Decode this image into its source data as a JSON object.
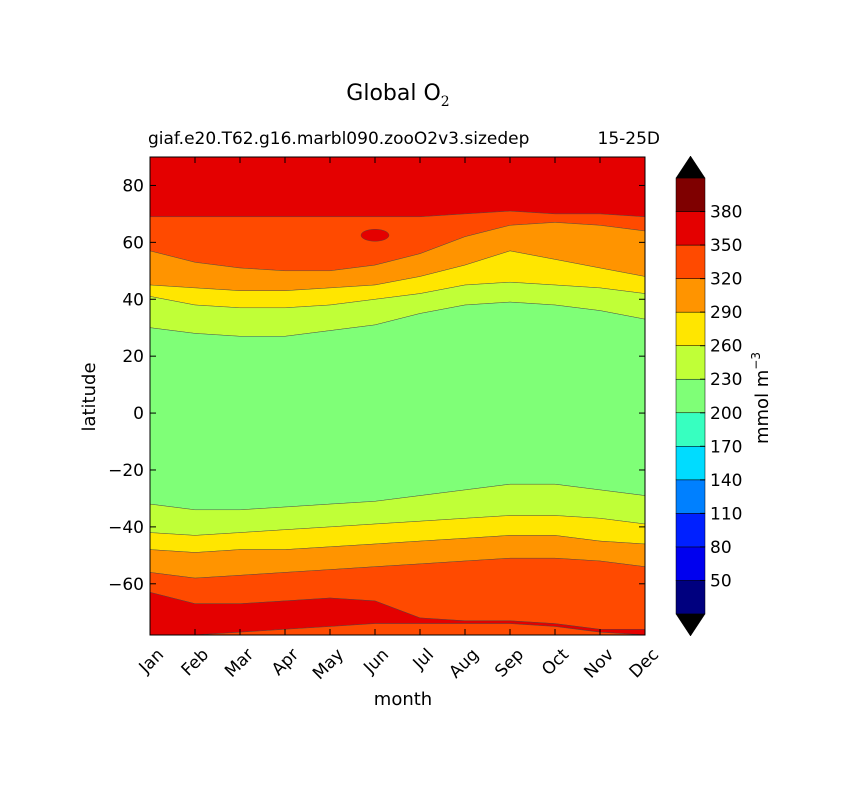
{
  "title_main": "Global O",
  "title_sub": "2",
  "experiment": "giaf.e20.T62.g16.marbl090.zooO2v3.sizedep",
  "depth_label": "15-25D",
  "colors": {
    "levels": [
      "#00007f",
      "#0000ef",
      "#0020ff",
      "#0080ff",
      "#00dcff",
      "#37ffc0",
      "#7fff77",
      "#c0ff37",
      "#ffe600",
      "#ff9400",
      "#ff4a00",
      "#e40000",
      "#7f0000"
    ],
    "extend_min": "#000000",
    "extend_max": "#000000"
  },
  "chart_data": {
    "type": "contourf",
    "title": "Global O₂",
    "subtitle_left": "giaf.e20.T62.g16.marbl090.zooO2v3.sizedep",
    "subtitle_right": "15-25D",
    "xlabel": "month",
    "ylabel": "latitude",
    "x_categories": [
      "Jan",
      "Feb",
      "Mar",
      "Apr",
      "May",
      "Jun",
      "Jul",
      "Aug",
      "Sep",
      "Oct",
      "Nov",
      "Dec"
    ],
    "xlim": [
      0,
      11
    ],
    "ylim": [
      -78,
      90
    ],
    "yticks": [
      80,
      60,
      40,
      20,
      0,
      -20,
      -40,
      -60
    ],
    "ytick_labels": [
      "80",
      "60",
      "40",
      "20",
      "0",
      "−20",
      "−40",
      "−60"
    ],
    "colorbar": {
      "label": "mmol m",
      "label_sup": "−3",
      "levels": [
        20,
        50,
        80,
        110,
        140,
        170,
        200,
        230,
        260,
        290,
        320,
        350,
        380,
        410
      ],
      "tick_labels": [
        "50",
        "80",
        "110",
        "140",
        "170",
        "200",
        "230",
        "260",
        "290",
        "320",
        "350",
        "380"
      ],
      "extend": "both"
    },
    "boundaries": {
      "description": "latitude of contour boundaries at each month (Jan..Dec)",
      "o2_350_north": [
        69,
        69,
        69,
        69,
        69,
        69,
        69,
        70,
        71,
        70,
        70,
        69
      ],
      "o2_320_north": [
        57,
        53,
        51,
        50,
        50,
        52,
        56,
        62,
        66,
        67,
        66,
        64
      ],
      "o2_290_north": [
        45,
        44,
        43,
        43,
        44,
        45,
        48,
        52,
        57,
        54,
        51,
        48
      ],
      "o2_260_north": [
        41,
        38,
        37,
        37,
        38,
        40,
        42,
        45,
        46,
        45,
        44,
        42
      ],
      "o2_230_north": [
        30,
        28,
        27,
        27,
        29,
        31,
        35,
        38,
        39,
        38,
        36,
        33
      ],
      "o2_230_south": [
        -32,
        -34,
        -34,
        -33,
        -32,
        -31,
        -29,
        -27,
        -25,
        -25,
        -27,
        -29
      ],
      "o2_260_south": [
        -42,
        -43,
        -42,
        -41,
        -40,
        -39,
        -38,
        -37,
        -36,
        -36,
        -37,
        -39
      ],
      "o2_290_south": [
        -48,
        -49,
        -48,
        -48,
        -47,
        -46,
        -45,
        -44,
        -43,
        -43,
        -45,
        -46
      ],
      "o2_320_south": [
        -56,
        -58,
        -57,
        -56,
        -55,
        -54,
        -53,
        -52,
        -51,
        -51,
        -52,
        -54
      ],
      "o2_350_south": [
        -63,
        -67,
        -67,
        -66,
        -65,
        -66,
        -72,
        -73,
        -73,
        -74,
        -76,
        -76
      ],
      "o2_320_south_bottom": [
        -78,
        -78,
        -77,
        -76,
        -75,
        -74,
        -74,
        -74,
        -74,
        -75,
        -77,
        -78
      ]
    }
  }
}
